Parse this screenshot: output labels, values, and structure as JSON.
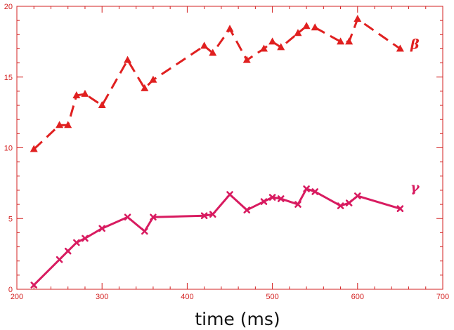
{
  "chart_data": {
    "type": "line",
    "title": "",
    "xlabel": "time (ms)",
    "ylabel": "",
    "xlim": [
      200,
      700
    ],
    "ylim": [
      0,
      20
    ],
    "xticks": [
      200,
      300,
      400,
      500,
      600,
      700
    ],
    "yticks": [
      0,
      5,
      10,
      15,
      20
    ],
    "grid": false,
    "legend": "none",
    "axis_color": "#d32020",
    "series": [
      {
        "name": "β",
        "style": "dashed",
        "marker": "triangle",
        "color": "#e02020",
        "label_position": [
          662,
          17.3
        ],
        "x": [
          220,
          250,
          260,
          270,
          280,
          300,
          330,
          350,
          360,
          420,
          430,
          450,
          470,
          490,
          500,
          510,
          530,
          540,
          550,
          580,
          590,
          600,
          650
        ],
        "y": [
          9.9,
          11.6,
          11.6,
          13.7,
          13.8,
          13.0,
          16.2,
          14.2,
          14.8,
          17.2,
          16.7,
          18.4,
          16.2,
          17.0,
          17.5,
          17.1,
          18.1,
          18.6,
          18.5,
          17.5,
          17.5,
          19.1,
          17.0
        ]
      },
      {
        "name": "γ",
        "style": "solid",
        "marker": "x",
        "color": "#d81b60",
        "label_position": [
          662,
          7.2
        ],
        "x": [
          220,
          250,
          260,
          270,
          280,
          300,
          330,
          350,
          360,
          420,
          430,
          450,
          470,
          490,
          500,
          510,
          530,
          540,
          550,
          580,
          590,
          600,
          650
        ],
        "y": [
          0.3,
          2.1,
          2.7,
          3.3,
          3.6,
          4.3,
          5.1,
          4.1,
          5.1,
          5.2,
          5.3,
          6.7,
          5.6,
          6.2,
          6.5,
          6.4,
          6.0,
          7.1,
          6.9,
          5.9,
          6.1,
          6.6,
          5.7
        ]
      }
    ]
  }
}
